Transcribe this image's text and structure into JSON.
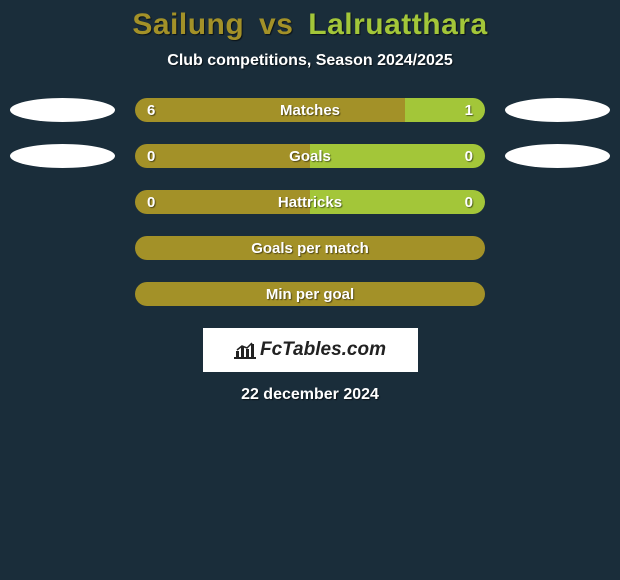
{
  "colors": {
    "background": "#1a2d3a",
    "player1": "#a39128",
    "player2": "#a3c639",
    "oval": "#ffffff",
    "text": "#ffffff",
    "logo_bg": "#ffffff",
    "logo_text": "#222222"
  },
  "title": {
    "player1": "Sailung",
    "vs": "vs",
    "player2": "Lalruatthara"
  },
  "subtitle": "Club competitions, Season 2024/2025",
  "stats": [
    {
      "label": "Matches",
      "left_val": "6",
      "right_val": "1",
      "left_pct": 77,
      "right_pct": 23,
      "show_left_oval": true,
      "show_right_oval": true
    },
    {
      "label": "Goals",
      "left_val": "0",
      "right_val": "0",
      "left_pct": 50,
      "right_pct": 50,
      "show_left_oval": true,
      "show_right_oval": true
    },
    {
      "label": "Hattricks",
      "left_val": "0",
      "right_val": "0",
      "left_pct": 50,
      "right_pct": 50,
      "show_left_oval": false,
      "show_right_oval": false
    },
    {
      "label": "Goals per match",
      "left_val": "",
      "right_val": "",
      "left_pct": 100,
      "right_pct": 0,
      "show_left_oval": false,
      "show_right_oval": false
    },
    {
      "label": "Min per goal",
      "left_val": "",
      "right_val": "",
      "left_pct": 100,
      "right_pct": 0,
      "show_left_oval": false,
      "show_right_oval": false
    }
  ],
  "logo": {
    "text": "FcTables.com"
  },
  "date": "22 december 2024"
}
